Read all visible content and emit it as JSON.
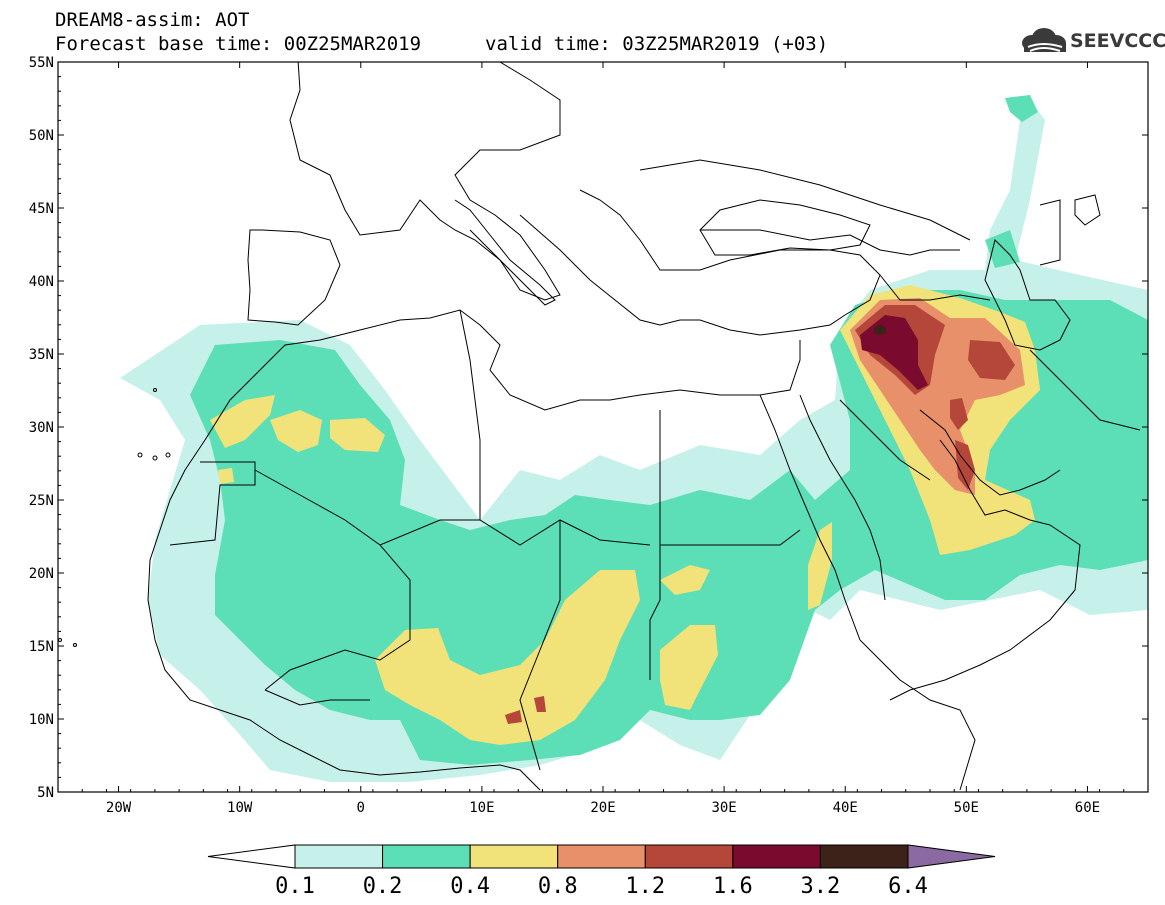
{
  "header": {
    "title": "DREAM8-assim: AOT",
    "base_time": "Forecast base time: 00Z25MAR2019",
    "valid_time": "valid time: 03Z25MAR2019 (+03)",
    "logo_text": "SEEVCCC"
  },
  "map": {
    "lon_range": [
      -25,
      65
    ],
    "lat_range": [
      5,
      55
    ],
    "lat_ticks": [
      "55N",
      "50N",
      "45N",
      "40N",
      "35N",
      "30N",
      "25N",
      "20N",
      "15N",
      "10N",
      "5N"
    ],
    "lon_ticks": [
      "20W",
      "10W",
      "0",
      "10E",
      "20E",
      "30E",
      "40E",
      "50E",
      "60E"
    ],
    "coastline_color": "#000000"
  },
  "colorbar": {
    "levels": [
      "0.1",
      "0.2",
      "0.4",
      "0.8",
      "1.2",
      "1.6",
      "3.2",
      "6.4"
    ],
    "colors": [
      "#c6f1ea",
      "#5cdfb6",
      "#f2e27a",
      "#e8906a",
      "#b5473a",
      "#7a0b2e",
      "#3c2218",
      "#8a6aa0"
    ],
    "under_color": "#ffffff"
  }
}
